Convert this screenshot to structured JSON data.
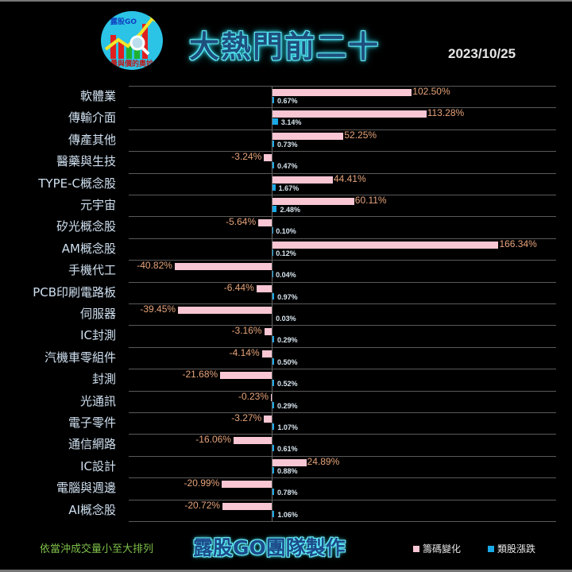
{
  "header": {
    "logo_text": "露股GO",
    "logo_sub": "量與價的奧妙",
    "title": "大熱門前二十",
    "date": "2023/10/25"
  },
  "footer": {
    "sort_note": "依當沖成交量小至大排列",
    "credit": "露股GO團隊製作",
    "legend": [
      {
        "label": "籌碼變化",
        "color": "#f9c6d3"
      },
      {
        "label": "類股漲跌",
        "color": "#1aa9e6"
      }
    ]
  },
  "colors": {
    "chip_change_bar": "#f9c6d3",
    "sector_change_bar": "#1aa9e6",
    "chip_label": "#e7a47a",
    "sector_label": "#d8e6f0",
    "category_label": "#cfe0f0"
  },
  "chart_data": {
    "type": "bar",
    "orientation": "horizontal",
    "title": "大熱門前二十",
    "subtitle": "2023/10/25",
    "categories": [
      "軟體業",
      "傳輸介面",
      "傳產其他",
      "醫藥與生技",
      "TYPE-C概念股",
      "元宇宙",
      "矽光概念股",
      "AM概念股",
      "手機代工",
      "PCB印刷電路板",
      "伺服器",
      "IC封測",
      "汽機車零組件",
      "封測",
      "光通訊",
      "電子零件",
      "通信網路",
      "IC設計",
      "電腦與週邊",
      "AI概念股"
    ],
    "series": [
      {
        "name": "籌碼變化",
        "color": "#f9c6d3",
        "unit": "%",
        "values": [
          102.5,
          113.28,
          52.25,
          -3.24,
          44.41,
          60.11,
          -5.64,
          166.34,
          -40.82,
          -6.44,
          -39.45,
          -3.16,
          -4.14,
          -21.68,
          -0.23,
          -3.27,
          -16.06,
          24.89,
          -20.99,
          -20.72
        ],
        "labels": [
          "102.50%",
          "113.28%",
          "52.25%",
          "-3.24%",
          "44.41%",
          "60.11%",
          "-5.64%",
          "166.34%",
          "-40.82%",
          "-6.44%",
          "-39.45%",
          "-3.16%",
          "-4.14%",
          "-21.68%",
          "-0.23%",
          "-3.27%",
          "-16.06%",
          "24.89%",
          "-20.99%",
          "-20.72%"
        ]
      },
      {
        "name": "類股漲跌",
        "color": "#1aa9e6",
        "unit": "%",
        "values": [
          0.67,
          3.14,
          0.73,
          0.47,
          1.67,
          2.48,
          0.1,
          0.12,
          0.04,
          0.97,
          0.03,
          0.29,
          0.5,
          0.52,
          0.29,
          1.07,
          0.61,
          0.88,
          0.78,
          1.06
        ],
        "labels": [
          "0.67%",
          "3.14%",
          "0.73%",
          "0.47%",
          "1.67%",
          "2.48%",
          "0.10%",
          "0.12%",
          "0.04%",
          "0.97%",
          "0.03%",
          "0.29%",
          "0.50%",
          "0.52%",
          "0.29%",
          "1.07%",
          "0.61%",
          "0.88%",
          "0.78%",
          "1.06%"
        ]
      }
    ],
    "xlabel": "",
    "ylabel": "",
    "grid": true,
    "legend_position": "bottom-right",
    "note": "依當沖成交量小至大排列"
  }
}
